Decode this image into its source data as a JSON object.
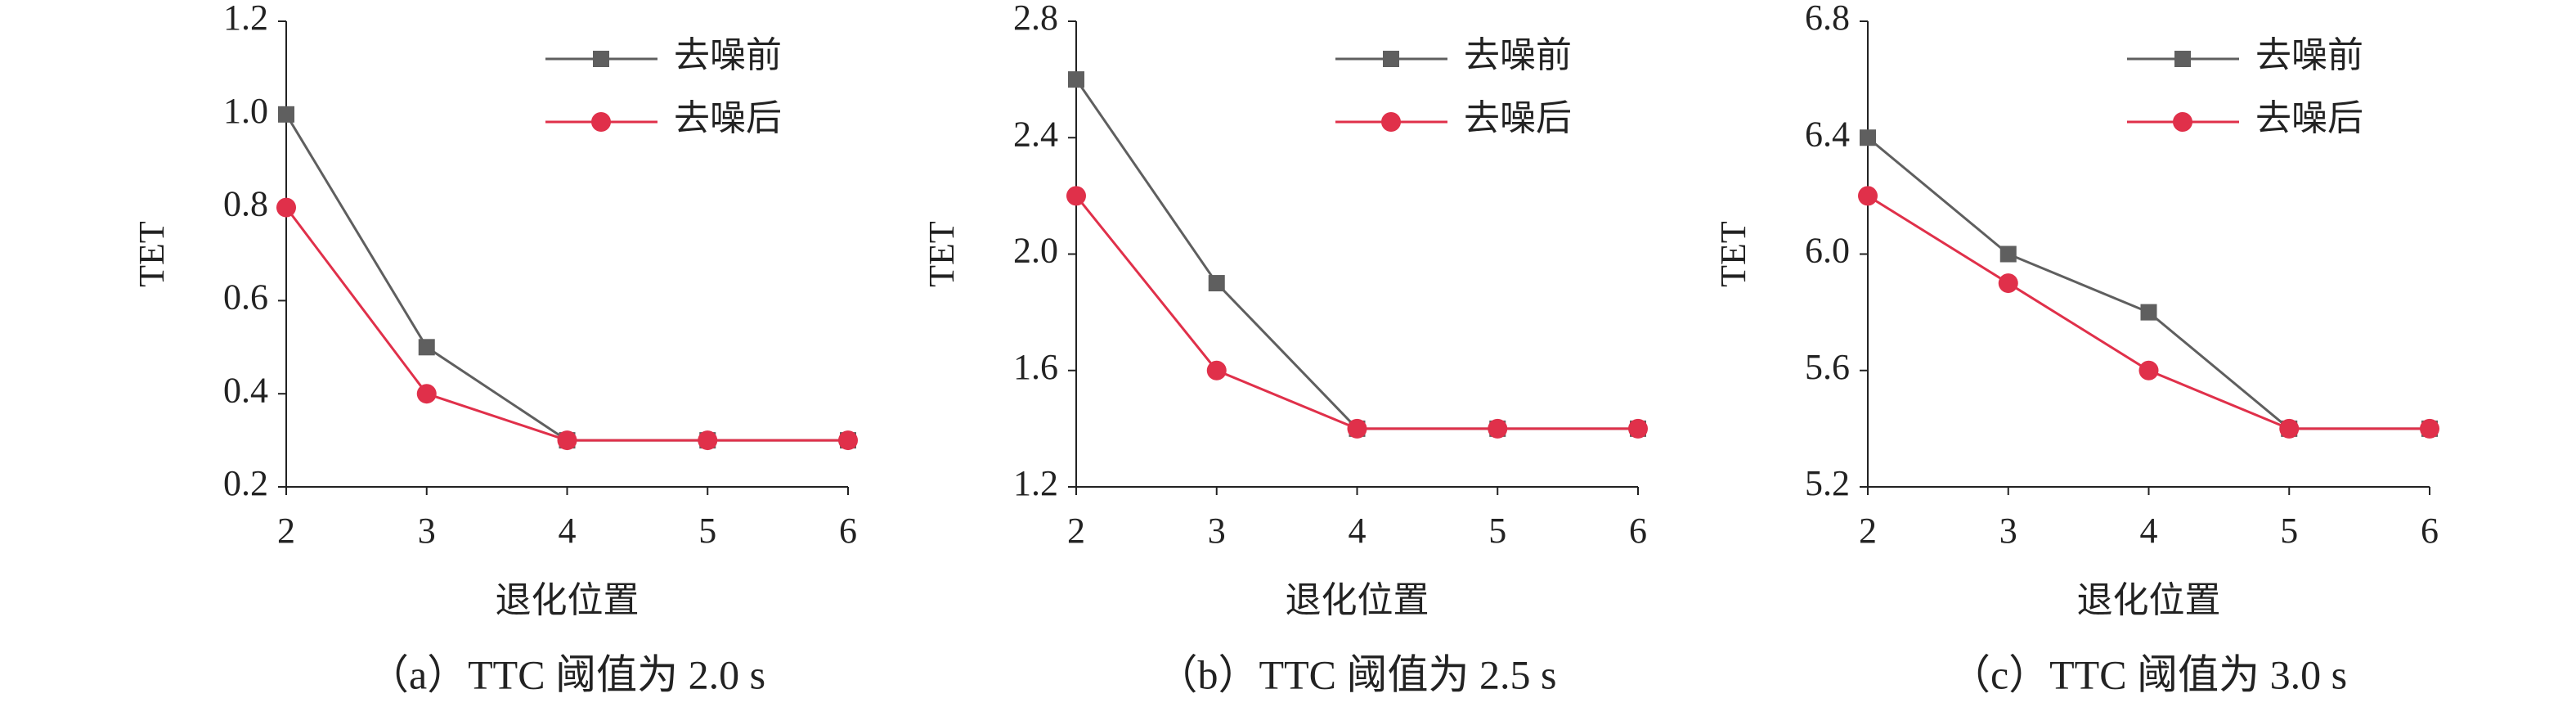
{
  "chart_data": [
    {
      "type": "line",
      "caption": "（a）TTC 阈值为 2.0 s",
      "xlabel": "退化位置",
      "ylabel": "TET",
      "x": [
        2,
        3,
        4,
        5,
        6
      ],
      "xlim": [
        2,
        6
      ],
      "xticks": [
        2,
        3,
        4,
        5,
        6
      ],
      "ylim": [
        0.2,
        1.2
      ],
      "yticks": [
        0.2,
        0.4,
        0.6,
        0.8,
        {
          "value": 1,
          "label": "1.0"
        },
        1.2
      ],
      "legend": "upper right",
      "series": [
        {
          "name": "去噪前",
          "color": "#5f5f5f",
          "marker": "square",
          "values": [
            1.0,
            0.5,
            0.3,
            0.3,
            0.3
          ]
        },
        {
          "name": "去噪后",
          "color": "#e0304a",
          "marker": "circle",
          "values": [
            0.8,
            0.4,
            0.3,
            0.3,
            0.3
          ]
        }
      ]
    },
    {
      "type": "line",
      "caption": "（b）TTC 阈值为 2.5 s",
      "xlabel": "退化位置",
      "ylabel": "TET",
      "x": [
        2,
        3,
        4,
        5,
        6
      ],
      "xlim": [
        2,
        6
      ],
      "xticks": [
        2,
        3,
        4,
        5,
        6
      ],
      "ylim": [
        1.2,
        2.8
      ],
      "yticks": [
        1.2,
        1.6,
        {
          "value": 2,
          "label": "2.0"
        },
        2.4,
        2.8
      ],
      "legend": "upper right",
      "series": [
        {
          "name": "去噪前",
          "color": "#5f5f5f",
          "marker": "square",
          "values": [
            2.6,
            1.9,
            1.4,
            1.4,
            1.4
          ]
        },
        {
          "name": "去噪后",
          "color": "#e0304a",
          "marker": "circle",
          "values": [
            2.2,
            1.6,
            1.4,
            1.4,
            1.4
          ]
        }
      ]
    },
    {
      "type": "line",
      "caption": "（c）TTC 阈值为 3.0 s",
      "xlabel": "退化位置",
      "ylabel": "TET",
      "x": [
        2,
        3,
        4,
        5,
        6
      ],
      "xlim": [
        2,
        6
      ],
      "xticks": [
        2,
        3,
        4,
        5,
        6
      ],
      "ylim": [
        5.2,
        6.8
      ],
      "yticks": [
        5.2,
        5.6,
        {
          "value": 6,
          "label": "6.0"
        },
        6.4,
        6.8
      ],
      "legend": "upper right",
      "series": [
        {
          "name": "去噪前",
          "color": "#5f5f5f",
          "marker": "square",
          "values": [
            6.4,
            6.0,
            5.8,
            5.4,
            5.4
          ]
        },
        {
          "name": "去噪后",
          "color": "#e0304a",
          "marker": "circle",
          "values": [
            6.2,
            5.9,
            5.6,
            5.4,
            5.4
          ]
        }
      ]
    }
  ]
}
